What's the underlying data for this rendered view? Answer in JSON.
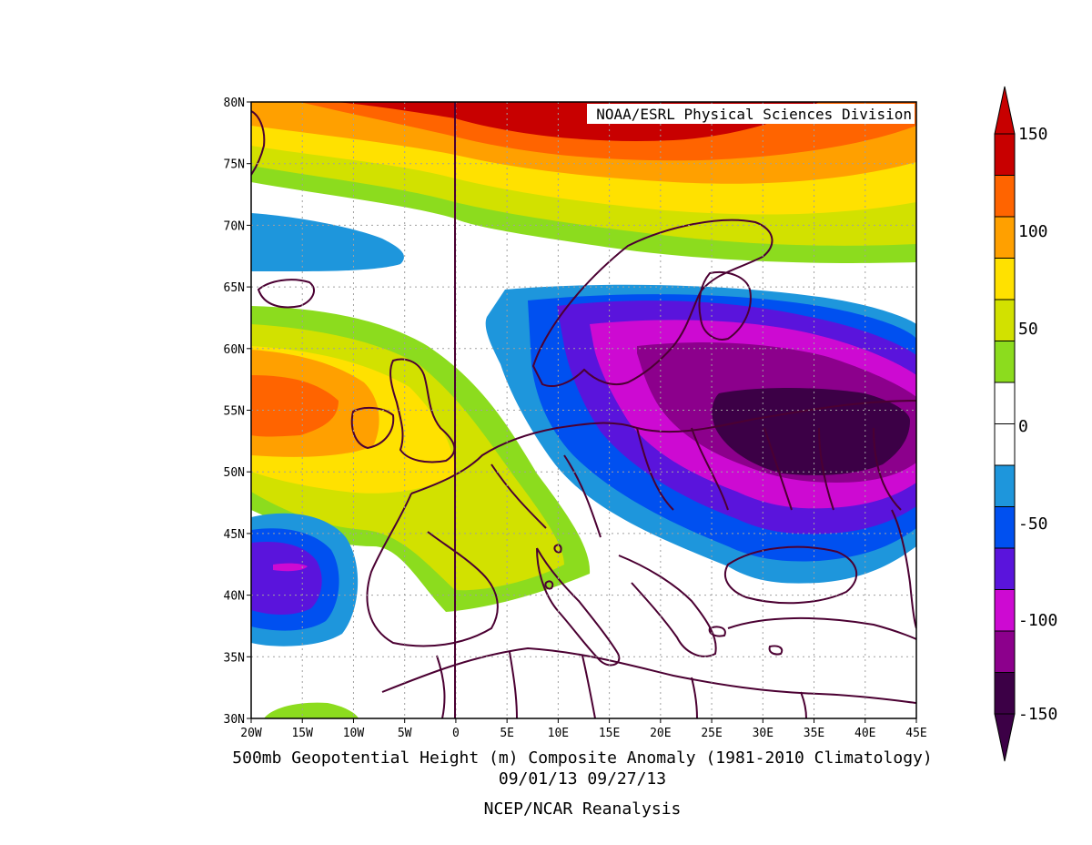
{
  "credit": "NOAA/ESRL Physical Sciences Division",
  "caption": {
    "line1": "500mb Geopotential Height (m) Composite Anomaly (1981-2010 Climatology)",
    "line2": "09/01/13 09/27/13",
    "line3": "NCEP/NCAR Reanalysis"
  },
  "map": {
    "lat_ticks": [
      "80N",
      "75N",
      "70N",
      "65N",
      "60N",
      "55N",
      "50N",
      "45N",
      "40N",
      "35N",
      "30N"
    ],
    "lon_ticks": [
      "20W",
      "15W",
      "10W",
      "5W",
      "0",
      "5E",
      "10E",
      "15E",
      "20E",
      "25E",
      "30E",
      "35E",
      "40E",
      "45E"
    ],
    "lat_range": [
      30,
      80
    ],
    "lon_range": [
      -20,
      45
    ]
  },
  "colorbar": {
    "labels": [
      "150",
      "100",
      "50",
      "0",
      "-50",
      "-100",
      "-150"
    ],
    "colors_top_to_bottom": [
      "#c80000",
      "#ff6400",
      "#ffa000",
      "#ffe100",
      "#d2e100",
      "#8cdc1e",
      "#ffffff",
      "#ffffff",
      "#1e96dc",
      "#0050f0",
      "#5a14dc",
      "#cd0ad2",
      "#8c008c",
      "#3c0046"
    ]
  },
  "colors": {
    "land_outline": "#4b0032",
    "grid": "#a0a0a0"
  }
}
